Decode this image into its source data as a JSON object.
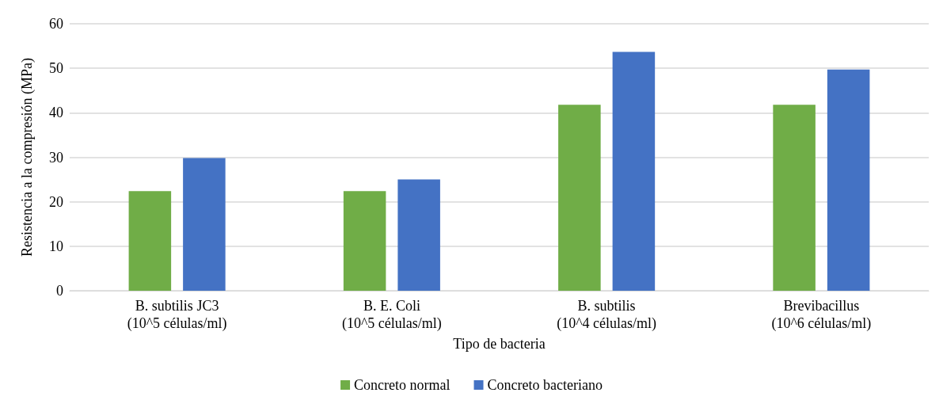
{
  "chart_data": {
    "type": "bar",
    "xlabel": "Tipo de bacteria",
    "ylabel": "Resistencia a la compresión (MPa)",
    "categories": [
      "B. subtilis JC3\n(10^5 células/ml)",
      "B. E. Coli\n(10^5 células/ml)",
      "B. subtilis\n(10^4 células/ml)",
      "Brevibacillus\n(10^6 células/ml)"
    ],
    "series": [
      {
        "name": "Concreto normal",
        "color": "#70ad47",
        "values": [
          22.4,
          22.4,
          41.8,
          41.8
        ]
      },
      {
        "name": "Concreto bacteriano",
        "color": "#4472c4",
        "values": [
          29.8,
          25.0,
          53.7,
          49.7
        ]
      }
    ],
    "ylim": [
      0,
      60
    ],
    "yticks": [
      0,
      10,
      20,
      30,
      40,
      50,
      60
    ],
    "grid": "y",
    "legend": "bottom"
  }
}
